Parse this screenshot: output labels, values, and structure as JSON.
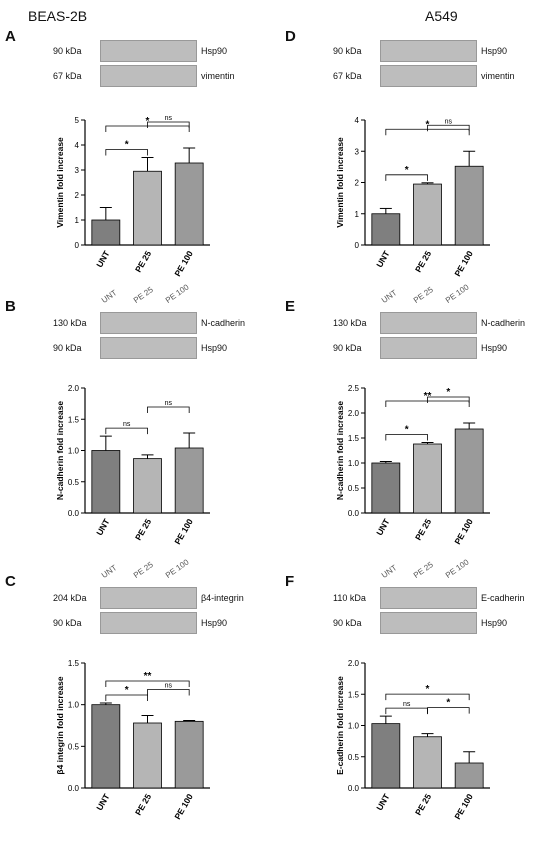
{
  "columns": {
    "left": "BEAS-2B",
    "right": "A549"
  },
  "lanes": [
    "UNT",
    "PE 25",
    "PE 100"
  ],
  "panels": [
    {
      "letter": "A",
      "blots": [
        {
          "size": "90 kDa",
          "protein": "Hsp90"
        },
        {
          "size": "67 kDa",
          "protein": "vimentin"
        }
      ]
    },
    {
      "letter": "D",
      "blots": [
        {
          "size": "90 kDa",
          "protein": "Hsp90"
        },
        {
          "size": "67 kDa",
          "protein": "vimentin"
        }
      ]
    },
    {
      "letter": "B",
      "blots": [
        {
          "size": "130 kDa",
          "protein": "N-cadherin"
        },
        {
          "size": "90 kDa",
          "protein": "Hsp90"
        }
      ]
    },
    {
      "letter": "E",
      "blots": [
        {
          "size": "130 kDa",
          "protein": "N-cadherin"
        },
        {
          "size": "90 kDa",
          "protein": "Hsp90"
        }
      ]
    },
    {
      "letter": "C",
      "blots": [
        {
          "size": "204 kDa",
          "protein": "β4-integrin"
        },
        {
          "size": "90 kDa",
          "protein": "Hsp90"
        }
      ]
    },
    {
      "letter": "F",
      "blots": [
        {
          "size": "110 kDa",
          "protein": "E-cadherin"
        },
        {
          "size": "90 kDa",
          "protein": "Hsp90"
        }
      ]
    }
  ],
  "colors": {
    "UNT": "#7f7f7f",
    "PE 25": "#b5b5b5",
    "PE 100": "#9a9a9a"
  },
  "chart_data": [
    {
      "type": "bar",
      "panel": "A",
      "categories": [
        "UNT",
        "PE 25",
        "PE 100"
      ],
      "values": [
        1.0,
        2.95,
        3.28
      ],
      "errors": [
        0.5,
        0.55,
        0.6
      ],
      "ylabel": "Vimentin fold increase",
      "ylim": [
        0,
        5
      ],
      "yticks": [
        "0",
        "1",
        "2",
        "3",
        "4",
        "5"
      ],
      "brackets": [
        {
          "from": 0,
          "to": 1,
          "label": "*"
        },
        {
          "from": 0,
          "to": 2,
          "label": "*"
        },
        {
          "from": 1,
          "to": 2,
          "label": "ns"
        }
      ]
    },
    {
      "type": "bar",
      "panel": "D",
      "categories": [
        "UNT",
        "PE 25",
        "PE 100"
      ],
      "values": [
        1.0,
        1.95,
        2.52
      ],
      "errors": [
        0.17,
        0.04,
        0.48
      ],
      "ylabel": "Vimentin fold increase",
      "ylim": [
        0,
        4
      ],
      "yticks": [
        "0",
        "1",
        "2",
        "3",
        "4"
      ],
      "brackets": [
        {
          "from": 0,
          "to": 1,
          "label": "*"
        },
        {
          "from": 0,
          "to": 2,
          "label": "*"
        },
        {
          "from": 1,
          "to": 2,
          "label": "ns"
        }
      ]
    },
    {
      "type": "bar",
      "panel": "B",
      "categories": [
        "UNT",
        "PE 25",
        "PE 100"
      ],
      "values": [
        1.0,
        0.87,
        1.04
      ],
      "errors": [
        0.23,
        0.06,
        0.24
      ],
      "ylabel": "N-cadherin fold increase",
      "ylim": [
        0,
        2.0
      ],
      "yticks": [
        "0.0",
        "0.5",
        "1.0",
        "1.5",
        "2.0"
      ],
      "brackets": [
        {
          "from": 0,
          "to": 1,
          "label": "ns"
        },
        {
          "from": 1,
          "to": 2,
          "label": "ns"
        }
      ]
    },
    {
      "type": "bar",
      "panel": "E",
      "categories": [
        "UNT",
        "PE 25",
        "PE 100"
      ],
      "values": [
        1.0,
        1.38,
        1.68
      ],
      "errors": [
        0.03,
        0.03,
        0.12
      ],
      "ylabel": "N-cadherin fold increase",
      "ylim": [
        0,
        2.5
      ],
      "yticks": [
        "0.0",
        "0.5",
        "1.0",
        "1.5",
        "2.0",
        "2.5"
      ],
      "brackets": [
        {
          "from": 0,
          "to": 1,
          "label": "*"
        },
        {
          "from": 0,
          "to": 2,
          "label": "**"
        },
        {
          "from": 1,
          "to": 2,
          "label": "*"
        }
      ]
    },
    {
      "type": "bar",
      "panel": "C",
      "categories": [
        "UNT",
        "PE 25",
        "PE 100"
      ],
      "values": [
        1.0,
        0.78,
        0.8
      ],
      "errors": [
        0.02,
        0.09,
        0.01
      ],
      "ylabel": "β4 integrin fold increase",
      "ylim": [
        0,
        1.5
      ],
      "yticks": [
        "0.0",
        "0.5",
        "1.0",
        "1.5"
      ],
      "brackets": [
        {
          "from": 0,
          "to": 1,
          "label": "*"
        },
        {
          "from": 0,
          "to": 2,
          "label": "**"
        },
        {
          "from": 1,
          "to": 2,
          "label": "ns"
        }
      ]
    },
    {
      "type": "bar",
      "panel": "F",
      "categories": [
        "UNT",
        "PE 25",
        "PE 100"
      ],
      "values": [
        1.03,
        0.82,
        0.4
      ],
      "errors": [
        0.12,
        0.05,
        0.18
      ],
      "ylabel": "E-cadherin fold increase",
      "ylim": [
        0,
        2.0
      ],
      "yticks": [
        "0.0",
        "0.5",
        "1.0",
        "1.5",
        "2.0"
      ],
      "brackets": [
        {
          "from": 0,
          "to": 1,
          "label": "ns"
        },
        {
          "from": 0,
          "to": 2,
          "label": "*"
        },
        {
          "from": 1,
          "to": 2,
          "label": "*"
        }
      ]
    }
  ]
}
